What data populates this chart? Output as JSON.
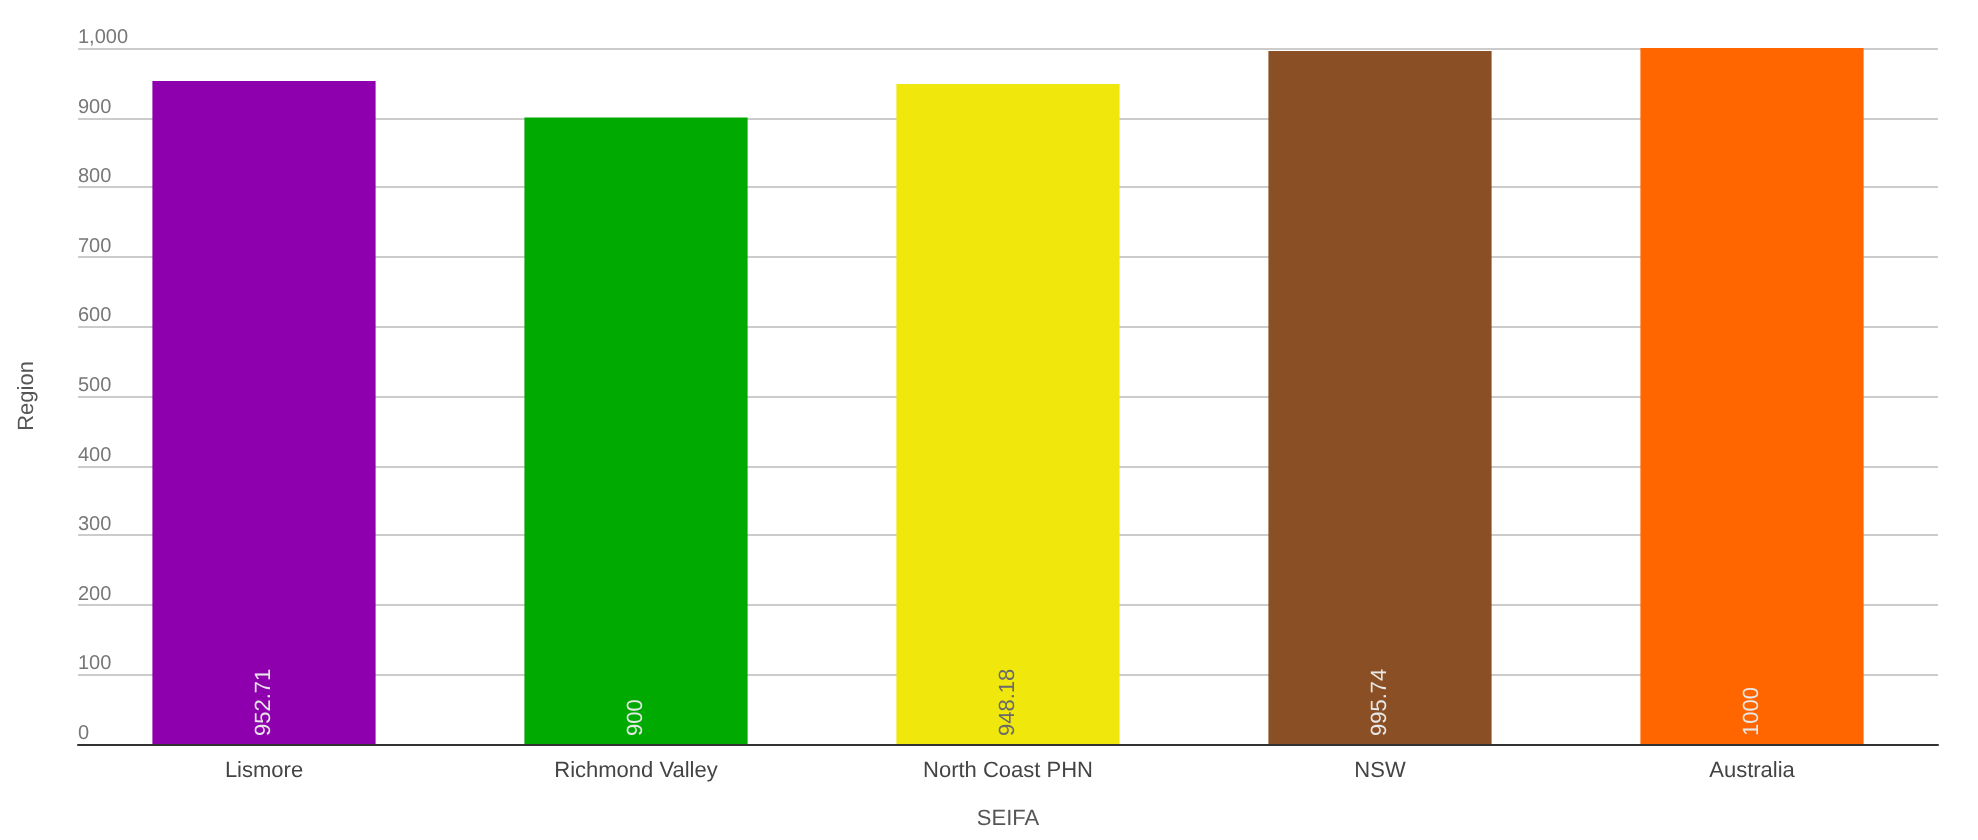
{
  "chart_data": {
    "type": "bar",
    "xlabel": "SEIFA",
    "ylabel": "Region",
    "categories": [
      "Lismore",
      "Richmond Valley",
      "North Coast PHN",
      "NSW",
      "Australia"
    ],
    "values": [
      952.71,
      900,
      948.18,
      995.74,
      1000
    ],
    "colors": [
      "#8e00ae",
      "#00aa00",
      "#f0e80c",
      "#8a4f24",
      "#ff6600"
    ],
    "ylim": [
      0,
      1000
    ],
    "yticks": [
      0,
      100,
      200,
      300,
      400,
      500,
      600,
      700,
      800,
      900,
      {
        "value": 1000,
        "label": "1,000"
      }
    ],
    "grid": "y",
    "data_labels": true
  }
}
